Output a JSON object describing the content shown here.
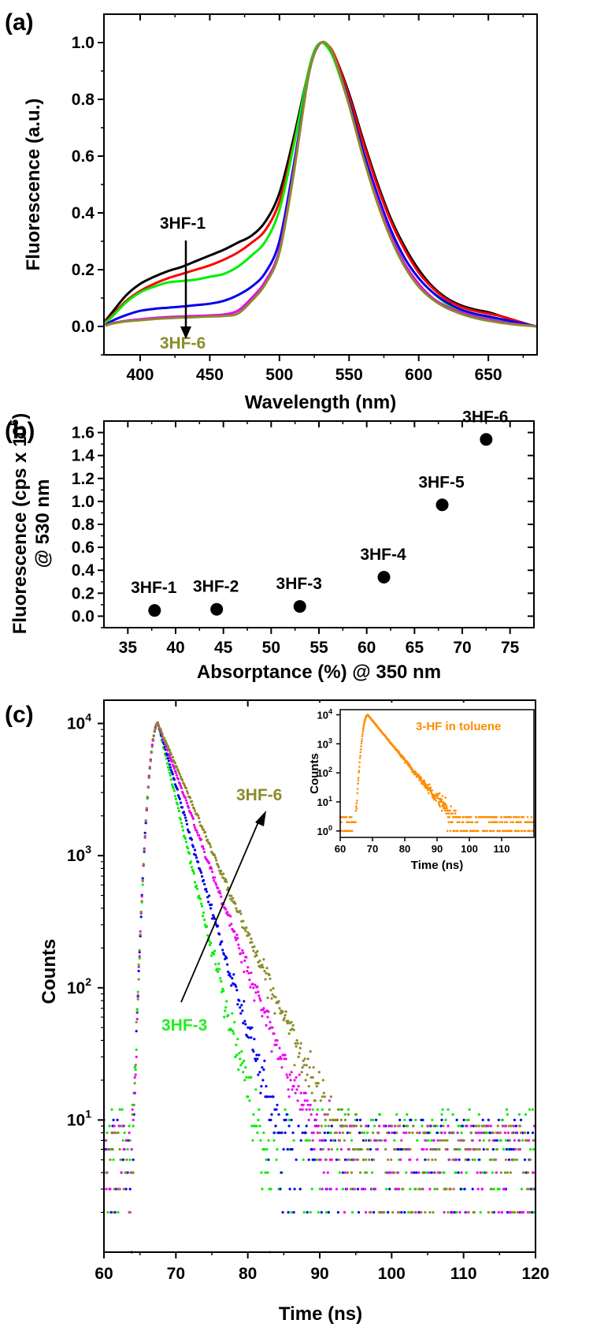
{
  "chart_data": [
    {
      "panel": "(a)",
      "type": "line",
      "xlabel": "Wavelength (nm)",
      "ylabel": "Fluorescence (a.u.)",
      "xlim": [
        374,
        685
      ],
      "ylim": [
        -0.1,
        1.1
      ],
      "xticks": [
        400,
        450,
        500,
        550,
        600,
        650
      ],
      "yticks": [
        0.0,
        0.2,
        0.4,
        0.6,
        0.8,
        1.0
      ],
      "xtick_labels": [
        "400",
        "450",
        "500",
        "550",
        "600",
        "650"
      ],
      "ytick_labels": [
        "0.0",
        "0.2",
        "0.4",
        "0.6",
        "0.8",
        "1.0"
      ],
      "grid": false,
      "legend": "none",
      "annotations": [
        {
          "text": "3HF-1",
          "color": "#000000"
        },
        {
          "text": "3HF-6",
          "color": "#8b8b2a"
        }
      ],
      "series": [
        {
          "color": "#000000",
          "x": [
            375,
            380,
            390,
            400,
            410,
            420,
            430,
            440,
            450,
            460,
            470,
            480,
            490,
            500,
            510,
            520,
            525,
            530,
            535,
            540,
            550,
            560,
            570,
            580,
            590,
            600,
            610,
            620,
            630,
            640,
            650,
            660,
            670,
            680,
            685
          ],
          "y": [
            0.02,
            0.05,
            0.11,
            0.15,
            0.175,
            0.195,
            0.21,
            0.23,
            0.25,
            0.27,
            0.295,
            0.32,
            0.37,
            0.47,
            0.66,
            0.88,
            0.96,
            1.0,
            0.99,
            0.95,
            0.82,
            0.66,
            0.51,
            0.38,
            0.28,
            0.2,
            0.14,
            0.1,
            0.075,
            0.06,
            0.05,
            0.035,
            0.02,
            0.005,
            0.0
          ]
        },
        {
          "color": "#ff0000",
          "x": [
            375,
            380,
            390,
            400,
            410,
            420,
            430,
            440,
            450,
            460,
            470,
            480,
            490,
            500,
            510,
            520,
            525,
            530,
            535,
            540,
            550,
            560,
            570,
            580,
            590,
            600,
            610,
            620,
            630,
            640,
            650,
            660,
            670,
            680,
            685
          ],
          "y": [
            0.015,
            0.04,
            0.09,
            0.125,
            0.15,
            0.17,
            0.185,
            0.2,
            0.215,
            0.235,
            0.26,
            0.295,
            0.34,
            0.44,
            0.64,
            0.87,
            0.96,
            1.0,
            0.99,
            0.95,
            0.81,
            0.65,
            0.5,
            0.37,
            0.27,
            0.19,
            0.135,
            0.095,
            0.07,
            0.055,
            0.045,
            0.035,
            0.02,
            0.005,
            0.0
          ]
        },
        {
          "color": "#00ee00",
          "x": [
            375,
            380,
            390,
            400,
            410,
            420,
            430,
            440,
            450,
            460,
            470,
            480,
            490,
            500,
            510,
            520,
            525,
            530,
            535,
            540,
            550,
            560,
            570,
            580,
            590,
            600,
            610,
            620,
            630,
            640,
            650,
            660,
            670,
            680,
            685
          ],
          "y": [
            0.012,
            0.035,
            0.085,
            0.12,
            0.14,
            0.155,
            0.16,
            0.165,
            0.175,
            0.185,
            0.21,
            0.25,
            0.3,
            0.41,
            0.63,
            0.88,
            0.97,
            1.0,
            0.98,
            0.93,
            0.78,
            0.61,
            0.46,
            0.34,
            0.24,
            0.17,
            0.12,
            0.08,
            0.055,
            0.04,
            0.03,
            0.02,
            0.01,
            0.003,
            0.0
          ]
        },
        {
          "color": "#0000ee",
          "x": [
            375,
            380,
            390,
            400,
            410,
            420,
            430,
            440,
            450,
            460,
            470,
            480,
            490,
            500,
            510,
            520,
            525,
            530,
            535,
            540,
            550,
            560,
            570,
            580,
            590,
            600,
            610,
            620,
            630,
            640,
            650,
            660,
            670,
            680,
            685
          ],
          "y": [
            0.005,
            0.02,
            0.04,
            0.055,
            0.062,
            0.066,
            0.07,
            0.075,
            0.08,
            0.09,
            0.11,
            0.14,
            0.19,
            0.3,
            0.56,
            0.86,
            0.96,
            1.0,
            0.99,
            0.94,
            0.79,
            0.62,
            0.47,
            0.34,
            0.24,
            0.17,
            0.12,
            0.085,
            0.06,
            0.045,
            0.035,
            0.025,
            0.015,
            0.005,
            0.0
          ]
        },
        {
          "color": "#ee00ee",
          "x": [
            375,
            380,
            390,
            400,
            410,
            420,
            430,
            440,
            450,
            460,
            470,
            480,
            490,
            500,
            510,
            520,
            525,
            530,
            535,
            540,
            550,
            560,
            570,
            580,
            590,
            600,
            610,
            620,
            630,
            640,
            650,
            660,
            670,
            680,
            685
          ],
          "y": [
            0.003,
            0.012,
            0.02,
            0.025,
            0.03,
            0.033,
            0.035,
            0.037,
            0.039,
            0.042,
            0.055,
            0.1,
            0.16,
            0.27,
            0.54,
            0.86,
            0.96,
            1.0,
            0.99,
            0.94,
            0.78,
            0.6,
            0.45,
            0.32,
            0.22,
            0.15,
            0.1,
            0.07,
            0.05,
            0.035,
            0.025,
            0.015,
            0.008,
            0.003,
            0.0
          ]
        },
        {
          "color": "#8b8b2a",
          "x": [
            375,
            380,
            390,
            400,
            410,
            420,
            430,
            440,
            450,
            460,
            470,
            480,
            490,
            500,
            510,
            520,
            525,
            530,
            535,
            540,
            550,
            560,
            570,
            580,
            590,
            600,
            610,
            620,
            630,
            640,
            650,
            660,
            670,
            680,
            685
          ],
          "y": [
            0.002,
            0.01,
            0.018,
            0.022,
            0.026,
            0.029,
            0.031,
            0.033,
            0.035,
            0.037,
            0.045,
            0.09,
            0.15,
            0.26,
            0.53,
            0.86,
            0.96,
            1.0,
            0.99,
            0.94,
            0.78,
            0.6,
            0.44,
            0.31,
            0.21,
            0.14,
            0.095,
            0.065,
            0.045,
            0.03,
            0.02,
            0.012,
            0.006,
            0.002,
            0.0
          ]
        }
      ]
    },
    {
      "panel": "(b)",
      "type": "scatter",
      "xlabel": "Absorptance (%) @ 350 nm",
      "ylabel_line1": "Fluorescence (cps x 10",
      "ylabel_sup": "5",
      "ylabel_line1_end": ")",
      "ylabel_line2": "@ 530 nm",
      "xlim": [
        32.5,
        77.5
      ],
      "ylim": [
        -0.1,
        1.7
      ],
      "xticks": [
        35,
        40,
        45,
        50,
        55,
        60,
        65,
        70,
        75
      ],
      "yticks": [
        0.0,
        0.2,
        0.4,
        0.6,
        0.8,
        1.0,
        1.2,
        1.4,
        1.6
      ],
      "xtick_labels": [
        "35",
        "40",
        "45",
        "50",
        "55",
        "60",
        "65",
        "70",
        "75"
      ],
      "ytick_labels": [
        "0.0",
        "0.2",
        "0.4",
        "0.6",
        "0.8",
        "1.0",
        "1.2",
        "1.4",
        "1.6"
      ],
      "grid": false,
      "legend": "none",
      "points": [
        {
          "label": "3HF-1",
          "x": 37.8,
          "y": 0.05
        },
        {
          "label": "3HF-2",
          "x": 44.3,
          "y": 0.06
        },
        {
          "label": "3HF-3",
          "x": 53.0,
          "y": 0.085
        },
        {
          "label": "3HF-4",
          "x": 61.8,
          "y": 0.34
        },
        {
          "label": "3HF-5",
          "x": 67.9,
          "y": 0.97
        },
        {
          "label": "3HF-6",
          "x": 72.5,
          "y": 1.54
        }
      ]
    },
    {
      "panel": "(c)",
      "type": "scatter",
      "xlabel": "Time (ns)",
      "ylabel": "Counts",
      "yscale": "log",
      "xlim": [
        60,
        120
      ],
      "ylim": [
        1,
        15000
      ],
      "xticks": [
        60,
        70,
        80,
        90,
        100,
        110,
        120
      ],
      "xtick_labels": [
        "60",
        "70",
        "80",
        "90",
        "100",
        "110",
        "120"
      ],
      "ytick_labels": [
        {
          "base": "10",
          "exp": "1"
        },
        {
          "base": "10",
          "exp": "2"
        },
        {
          "base": "10",
          "exp": "3"
        },
        {
          "base": "10",
          "exp": "4"
        }
      ],
      "grid": false,
      "legend": "none",
      "annotations": [
        {
          "text": "3HF-6",
          "color": "#8b8b2a"
        },
        {
          "text": "3HF-3",
          "color": "#22ee22"
        }
      ],
      "series": [
        {
          "color": "#00ee00",
          "peak_time": 67.5,
          "peak_counts": 10000,
          "decay_ns": 1.9,
          "background": [
            2,
            12
          ]
        },
        {
          "color": "#0000ee",
          "peak_time": 67.5,
          "peak_counts": 10000,
          "decay_ns": 2.3,
          "background": [
            2,
            10
          ]
        },
        {
          "color": "#ee00ee",
          "peak_time": 67.5,
          "peak_counts": 10000,
          "decay_ns": 2.9,
          "background": [
            2,
            9
          ]
        },
        {
          "color": "#8b8b2a",
          "peak_time": 67.5,
          "peak_counts": 10000,
          "decay_ns": 3.4,
          "background": [
            2,
            9
          ]
        }
      ],
      "inset": {
        "title": "3-HF in toluene",
        "color": "#ff8c00",
        "xlabel": "Time (ns)",
        "ylabel": "Counts",
        "yscale": "log",
        "xlim": [
          60,
          120
        ],
        "ylim": [
          0.6,
          15000
        ],
        "xticks": [
          60,
          70,
          80,
          90,
          100,
          110
        ],
        "xtick_labels": [
          "60",
          "70",
          "80",
          "90",
          "100",
          "110"
        ],
        "ytick_labels": [
          {
            "base": "10",
            "exp": "0"
          },
          {
            "base": "10",
            "exp": "1"
          },
          {
            "base": "10",
            "exp": "2"
          },
          {
            "base": "10",
            "exp": "3"
          },
          {
            "base": "10",
            "exp": "4"
          }
        ],
        "peak_time": 68.5,
        "peak_counts": 10000,
        "decay_ns": 3.2,
        "background": [
          1,
          3
        ]
      }
    }
  ]
}
